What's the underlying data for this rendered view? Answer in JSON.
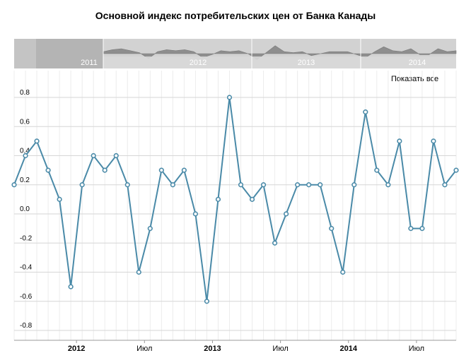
{
  "chart_data": {
    "type": "line",
    "title": "Основной индекс потребительских цен от Банка Канады",
    "ylim": [
      -0.8,
      0.9
    ],
    "y_ticks": [
      0.8,
      0.6,
      0.4,
      0.2,
      0.0,
      -0.2,
      -0.4,
      -0.6,
      -0.8
    ],
    "y_tick_labels": [
      "0.8",
      "0.6",
      "0.4",
      "0.2",
      "0.0",
      "-0.2",
      "-0.4",
      "-0.6",
      "-0.8"
    ],
    "x_labels": [
      {
        "text": "2012",
        "bold": true
      },
      {
        "text": "Июл",
        "bold": false
      },
      {
        "text": "2013",
        "bold": true
      },
      {
        "text": "Июл",
        "bold": false
      },
      {
        "text": "2014",
        "bold": true
      },
      {
        "text": "Июл",
        "bold": false
      }
    ],
    "series": [
      {
        "color": "#4a8aa8",
        "values": [
          0.2,
          0.4,
          0.5,
          0.3,
          0.1,
          -0.5,
          0.2,
          0.4,
          0.3,
          0.4,
          0.2,
          -0.4,
          -0.1,
          0.3,
          0.2,
          0.3,
          0.0,
          -0.6,
          0.1,
          0.8,
          0.2,
          0.1,
          0.2,
          -0.2,
          0.0,
          0.2,
          0.2,
          0.2,
          -0.1,
          -0.4,
          0.2,
          0.7,
          0.3,
          0.2,
          0.5,
          -0.1,
          -0.1,
          0.5,
          0.2,
          0.3
        ]
      }
    ],
    "grid": true,
    "show_all_label": "Показать все",
    "navigator": {
      "years": [
        "2011",
        "2012",
        "2013",
        "2014"
      ]
    }
  }
}
